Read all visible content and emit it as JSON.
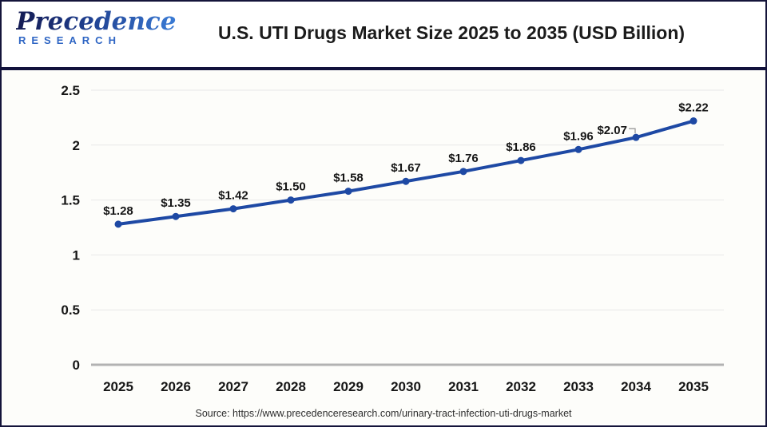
{
  "header": {
    "logo": {
      "brand": "Precedence",
      "sub": "RESEARCH"
    },
    "title": "U.S. UTI Drugs Market Size 2025 to 2035 (USD Billion)"
  },
  "chart_data": {
    "type": "line",
    "title": "U.S. UTI Drugs Market Size 2025 to 2035 (USD Billion)",
    "categories": [
      "2025",
      "2026",
      "2027",
      "2028",
      "2029",
      "2030",
      "2031",
      "2032",
      "2033",
      "2034",
      "2035"
    ],
    "values": [
      1.28,
      1.35,
      1.42,
      1.5,
      1.58,
      1.67,
      1.76,
      1.86,
      1.96,
      2.07,
      2.22
    ],
    "point_labels": [
      "$1.28",
      "$1.35",
      "$1.42",
      "$1.50",
      "$1.58",
      "$1.67",
      "$1.76",
      "$1.86",
      "$1.96",
      "$2.07",
      "$2.22"
    ],
    "ylim": [
      0,
      2.5
    ],
    "yticks": [
      0,
      0.5,
      1,
      1.5,
      2,
      2.5
    ],
    "ytick_labels": [
      "0",
      "0.5",
      "1",
      "1.5",
      "2",
      "2.5"
    ],
    "xlabel": "",
    "ylabel": "",
    "grid": true,
    "legend": "none",
    "units": "USD Billion",
    "leader_label_index": 9,
    "colors": {
      "line": "#1e49a4",
      "point": "#1e49a4",
      "gridline": "#e8e8e8",
      "zero_axis": "#b2b2b2",
      "label_text": "#161616",
      "leader": "#9a9a9a"
    }
  },
  "footer": {
    "source": "Source: https://www.precedenceresearch.com/urinary-tract-infection-uti-drugs-market"
  },
  "frame": {
    "border_color": "#14143a",
    "header_rule_color": "#12123c"
  }
}
